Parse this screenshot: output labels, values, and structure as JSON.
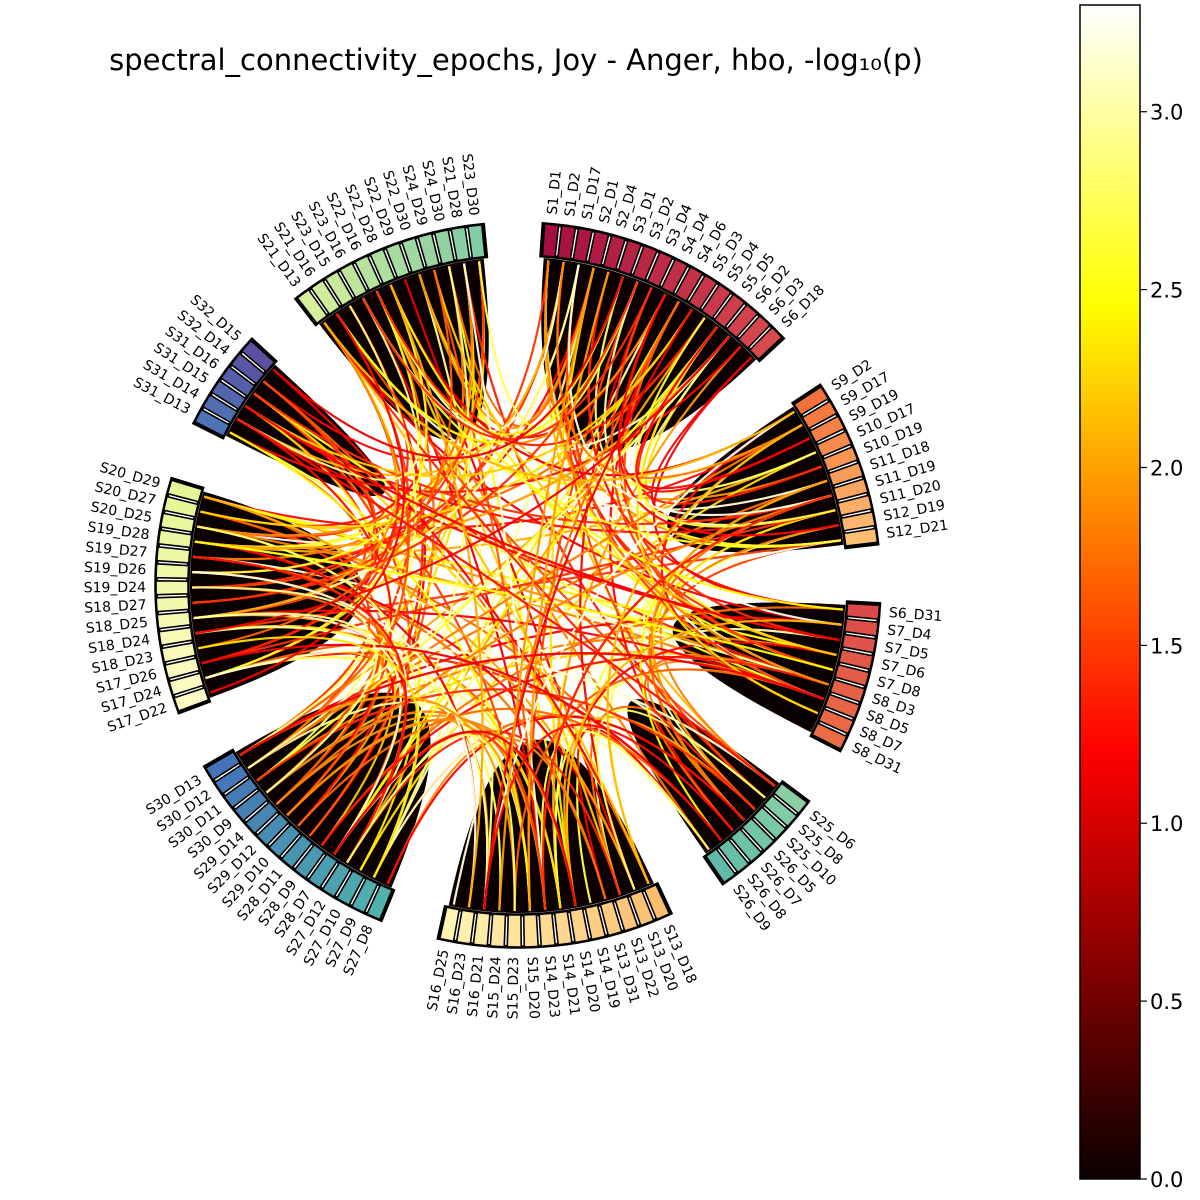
{
  "chart_data": {
    "type": "chord",
    "title": "spectral_connectivity_epochs, Joy - Anger, hbo, -log₁₀(p)",
    "colorbar": {
      "colormap": "hot",
      "range": [
        0.0,
        3.3
      ],
      "ticks": [
        {
          "value": 0.0,
          "label": "0.0"
        },
        {
          "value": 0.5,
          "label": "0.5"
        },
        {
          "value": 1.0,
          "label": "1.0"
        },
        {
          "value": 1.5,
          "label": "1.5"
        },
        {
          "value": 2.0,
          "label": "2.0"
        },
        {
          "value": 2.5,
          "label": "2.5"
        },
        {
          "value": 3.0,
          "label": "3.0"
        }
      ]
    },
    "groups": [
      {
        "nodes": [
          "S1_D1",
          "S1_D2",
          "S1_D17",
          "S2_D1",
          "S2_D4",
          "S3_D1",
          "S3_D2",
          "S3_D4",
          "S4_D4",
          "S4_D6",
          "S5_D3",
          "S5_D4",
          "S5_D5",
          "S6_D2",
          "S6_D3",
          "S6_D18"
        ],
        "color_start": "#a50f3f",
        "color_end": "#d94a4e"
      },
      {
        "nodes": [
          "S9_D2",
          "S9_D17",
          "S9_D19",
          "S10_D17",
          "S10_D19",
          "S11_D18",
          "S11_D19",
          "S11_D20",
          "S12_D19",
          "S12_D21"
        ],
        "color_start": "#f2713a",
        "color_end": "#fdbf74"
      },
      {
        "nodes": [
          "S6_D31",
          "S7_D4",
          "S7_D5",
          "S7_D6",
          "S7_D8",
          "S8_D3",
          "S8_D5",
          "S8_D7",
          "S8_D31"
        ],
        "color_start": "#db4a4a",
        "color_end": "#ec6c45"
      },
      {
        "nodes": [
          "S25_D6",
          "S25_D8",
          "S25_D10",
          "S26_D5",
          "S26_D7",
          "S26_D8",
          "S26_D9"
        ],
        "color_start": "#88d0a4",
        "color_end": "#5fbaa8"
      },
      {
        "nodes": [
          "S13_D18",
          "S13_D20",
          "S13_D22",
          "S13_D31",
          "S14_D19",
          "S14_D20",
          "S14_D21",
          "S14_D23",
          "S15_D20",
          "S15_D23",
          "S15_D24",
          "S16_D21",
          "S16_D23",
          "S16_D25"
        ],
        "color_start": "#fdbd6f",
        "color_end": "#fff4b0"
      },
      {
        "nodes": [
          "S27_D8",
          "S27_D9",
          "S27_D10",
          "S27_D12",
          "S28_D7",
          "S28_D9",
          "S28_D11",
          "S29_D10",
          "S29_D12",
          "S29_D14",
          "S30_D9",
          "S30_D11",
          "S30_D12",
          "S30_D13"
        ],
        "color_start": "#4fb2ad",
        "color_end": "#4372b6"
      },
      {
        "nodes": [
          "S17_D22",
          "S17_D24",
          "S17_D26",
          "S18_D23",
          "S18_D24",
          "S18_D25",
          "S18_D27",
          "S19_D24",
          "S19_D26",
          "S19_D27",
          "S19_D28",
          "S20_D25",
          "S20_D27",
          "S20_D29"
        ],
        "color_start": "#fffbc5",
        "color_end": "#e6f595"
      },
      {
        "nodes": [
          "S31_D13",
          "S31_D14",
          "S31_D15",
          "S31_D16",
          "S32_D14",
          "S32_D15"
        ],
        "color_start": "#4c74b4",
        "color_end": "#5e4fa2"
      },
      {
        "nodes": [
          "S21_D13",
          "S21_D16",
          "S23_D15",
          "S23_D16",
          "S22_D16",
          "S22_D28",
          "S22_D29",
          "S22_D30",
          "S24_D29",
          "S24_D30",
          "S21_D28",
          "S23_D30"
        ],
        "color_start": "#d7ee9b",
        "color_end": "#80cca4"
      }
    ]
  }
}
